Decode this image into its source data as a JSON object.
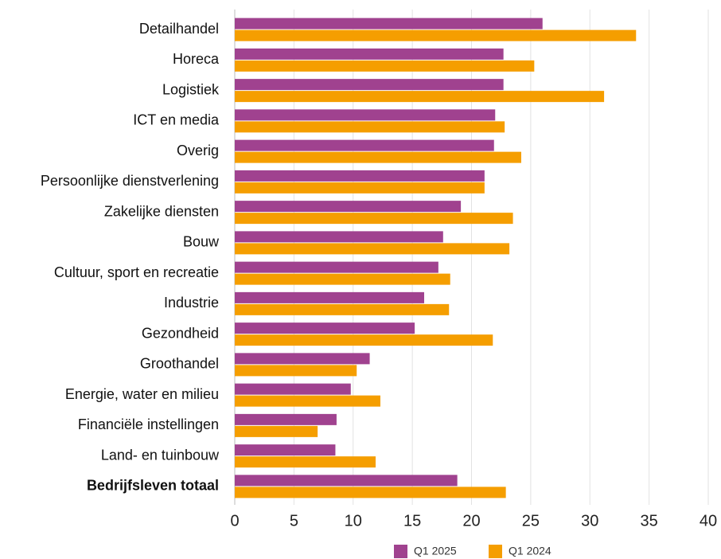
{
  "chart_data": {
    "type": "bar",
    "orientation": "horizontal",
    "categories": [
      "Detailhandel",
      "Horeca",
      "Logistiek",
      "ICT en media",
      "Overig",
      "Persoonlijke dienstverlening",
      "Zakelijke diensten",
      "Bouw",
      "Cultuur, sport en recreatie",
      "Industrie",
      "Gezondheid",
      "Groothandel",
      "Energie, water en milieu",
      "Financiële instellingen",
      "Land- en tuinbouw",
      "Bedrijfsleven totaal"
    ],
    "series": [
      {
        "name": "Q1 2025",
        "color": "#a0428f",
        "values": [
          26.0,
          22.7,
          22.7,
          22.0,
          21.9,
          21.1,
          19.1,
          17.6,
          17.2,
          16.0,
          15.2,
          11.4,
          9.8,
          8.6,
          8.5,
          18.8
        ]
      },
      {
        "name": "Q1 2024",
        "color": "#f59e00",
        "values": [
          33.9,
          25.3,
          31.2,
          22.8,
          24.2,
          21.1,
          23.5,
          23.2,
          18.2,
          18.1,
          21.8,
          10.3,
          12.3,
          7.0,
          11.9,
          22.9
        ]
      }
    ],
    "xlim": [
      0,
      40
    ],
    "xticks": [
      0,
      5,
      10,
      15,
      20,
      25,
      30,
      35,
      40
    ],
    "grid": true,
    "legend": "bottom"
  }
}
